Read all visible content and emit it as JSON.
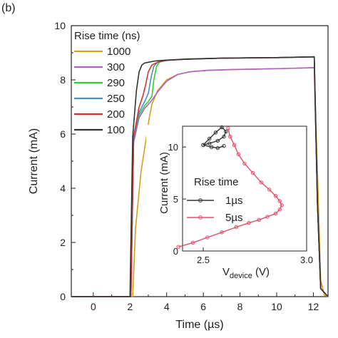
{
  "panel_label": "(b)",
  "chart_data": [
    {
      "type": "line",
      "xlabel": "Time (µs)",
      "ylabel": "Current (mA)",
      "xlim": [
        -1.2,
        12.8
      ],
      "ylim": [
        0,
        10
      ],
      "xticks": [
        "0",
        "2",
        "4",
        "6",
        "8",
        "10",
        "12"
      ],
      "yticks": [
        "0",
        "2",
        "4",
        "6",
        "8",
        "10"
      ],
      "legend_title": "Rise time (ns)",
      "legend_position": "top-left",
      "series": [
        {
          "name": "1000",
          "color": "#d4a017",
          "x": [
            -1.2,
            2.15,
            2.3,
            2.6,
            2.9,
            3.05,
            3.2,
            3.5,
            4.0,
            4.6,
            5.3,
            6.2,
            7.5,
            9.0,
            10.5,
            12.05,
            12.25,
            12.4,
            12.6,
            12.8
          ],
          "y": [
            0,
            0,
            2.5,
            4.6,
            5.9,
            6.6,
            7.1,
            7.6,
            8.0,
            8.2,
            8.3,
            8.35,
            8.38,
            8.4,
            8.42,
            8.45,
            4.0,
            0.6,
            0.05,
            0
          ]
        },
        {
          "name": "300",
          "color": "#b060c8",
          "x": [
            -1.2,
            2.05,
            2.2,
            2.5,
            2.8,
            3.0,
            3.2,
            3.5,
            4.0,
            4.6,
            5.3,
            6.2,
            7.5,
            9.0,
            10.5,
            12.05,
            12.22,
            12.4,
            12.8
          ],
          "y": [
            0,
            0,
            5.7,
            6.6,
            6.95,
            7.1,
            7.25,
            7.55,
            7.95,
            8.2,
            8.3,
            8.35,
            8.38,
            8.4,
            8.42,
            8.45,
            3.5,
            0.3,
            0
          ]
        },
        {
          "name": "290",
          "color": "#33cc33",
          "x": [
            -1.2,
            2.05,
            2.2,
            2.5,
            2.8,
            3.0,
            3.2,
            3.3,
            3.45,
            3.6,
            3.8,
            4.2,
            5.0,
            7.0,
            10.0,
            12.05,
            12.22,
            12.4,
            12.8
          ],
          "y": [
            0,
            0,
            5.8,
            6.7,
            7.05,
            7.2,
            7.4,
            8.0,
            8.5,
            8.65,
            8.7,
            8.73,
            8.77,
            8.8,
            8.82,
            8.85,
            3.5,
            0.3,
            0
          ]
        },
        {
          "name": "250",
          "color": "#4a90c8",
          "x": [
            -1.2,
            2.05,
            2.2,
            2.5,
            2.8,
            3.0,
            3.15,
            3.3,
            3.5,
            4.0,
            5.0,
            7.0,
            10.0,
            12.05,
            12.22,
            12.4,
            12.8
          ],
          "y": [
            0,
            0,
            5.8,
            6.8,
            7.2,
            7.5,
            8.1,
            8.5,
            8.65,
            8.72,
            8.76,
            8.8,
            8.82,
            8.85,
            3.5,
            0.3,
            0
          ]
        },
        {
          "name": "200",
          "color": "#d93030",
          "x": [
            -1.2,
            2.05,
            2.2,
            2.5,
            2.7,
            2.85,
            3.0,
            3.2,
            3.5,
            4.0,
            5.0,
            7.0,
            10.0,
            12.05,
            12.22,
            12.4,
            12.8
          ],
          "y": [
            0,
            0,
            5.9,
            7.0,
            7.4,
            7.8,
            8.3,
            8.55,
            8.65,
            8.72,
            8.76,
            8.8,
            8.82,
            8.85,
            3.5,
            0.3,
            0
          ]
        },
        {
          "name": "100",
          "color": "#333333",
          "x": [
            -1.2,
            2.0,
            2.15,
            2.35,
            2.5,
            2.65,
            2.8,
            3.0,
            3.4,
            4.0,
            5.0,
            7.0,
            10.0,
            12.05,
            12.22,
            12.4,
            12.8
          ],
          "y": [
            0,
            0,
            5.9,
            7.6,
            8.3,
            8.55,
            8.62,
            8.65,
            8.7,
            8.73,
            8.76,
            8.8,
            8.82,
            8.85,
            3.5,
            0.3,
            0
          ]
        }
      ]
    },
    {
      "type": "scatter",
      "xlabel_main": "V",
      "xlabel_sub": "device",
      "xlabel_unit": "(V)",
      "ylabel": "Current (mA)",
      "xlim": [
        2.4,
        3.0
      ],
      "ylim": [
        0,
        12
      ],
      "xticks": [
        "2.5",
        "3.0"
      ],
      "yticks": [
        "0",
        "5",
        "10"
      ],
      "legend_title": "Rise time",
      "legend_position": "bottom-left",
      "series": [
        {
          "name": "1µs",
          "color": "#333333",
          "x": [
            2.5,
            2.53,
            2.56,
            2.59,
            2.61,
            2.6,
            2.57,
            2.53,
            2.5,
            2.54,
            2.57,
            2.6
          ],
          "y": [
            10.2,
            10.8,
            11.4,
            11.9,
            11.5,
            11.0,
            10.6,
            10.35,
            10.2,
            10.0,
            9.9,
            10.1
          ]
        },
        {
          "name": "5µs",
          "color": "#e0506e",
          "x": [
            2.38,
            2.45,
            2.52,
            2.59,
            2.66,
            2.72,
            2.77,
            2.81,
            2.85,
            2.87,
            2.88,
            2.87,
            2.85,
            2.82,
            2.78,
            2.74,
            2.7,
            2.67,
            2.65,
            2.63,
            2.62
          ],
          "y": [
            0.4,
            0.8,
            1.3,
            1.8,
            2.3,
            2.7,
            3.0,
            3.3,
            3.6,
            4.0,
            4.4,
            4.8,
            5.3,
            5.9,
            6.6,
            7.5,
            8.4,
            9.3,
            10.2,
            11.0,
            11.8
          ]
        }
      ]
    }
  ]
}
